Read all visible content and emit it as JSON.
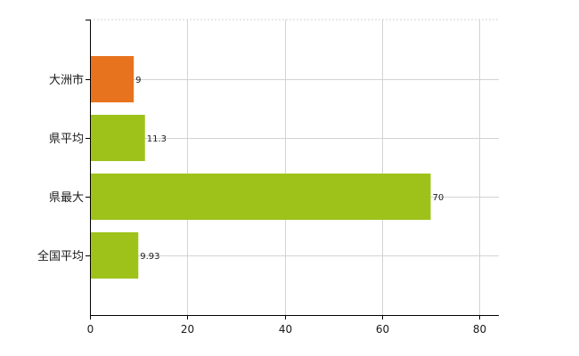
{
  "chart_data": {
    "type": "bar",
    "orientation": "horizontal",
    "categories": [
      "大洲市",
      "県平均",
      "県最大",
      "全国平均"
    ],
    "values": [
      9,
      11.3,
      70,
      9.93
    ],
    "value_labels": [
      "9",
      "11.3",
      "70",
      "9.93"
    ],
    "bar_colors": [
      "#e8731e",
      "#9ec21a",
      "#9ec21a",
      "#9ec21a"
    ],
    "xlim": [
      0,
      84
    ],
    "x_ticks": [
      0,
      20,
      40,
      60,
      80
    ],
    "x_tick_labels": [
      "0",
      "20",
      "40",
      "60",
      "80"
    ],
    "grid": true,
    "grid_color": "#d3d3d3",
    "axis_color": "#000000",
    "title": "",
    "xlabel": "",
    "ylabel": ""
  }
}
